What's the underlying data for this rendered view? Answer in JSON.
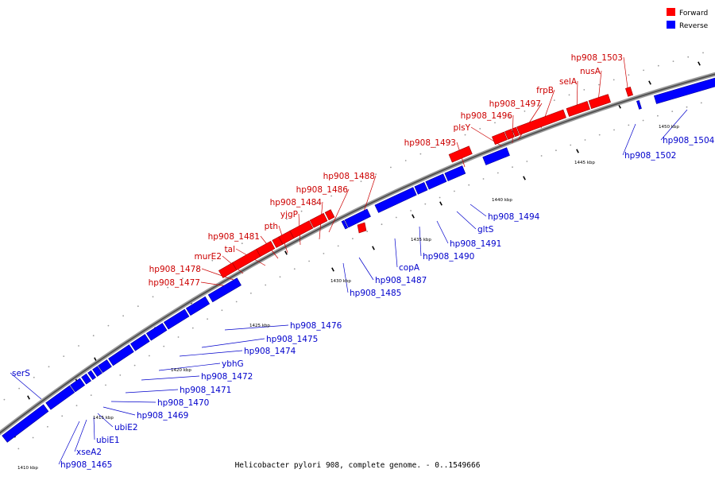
{
  "caption": "Helicobacter pylori 908, complete genome. - 0..1549666",
  "legend": {
    "forward_label": "Forward",
    "reverse_label": "Reverse",
    "forward_color": "#ff0000",
    "reverse_color": "#0000ff"
  },
  "tick_labels": [
    "1410 kbp",
    "1415 kbp",
    "1420 kbp",
    "1425 kbp",
    "1430 kbp",
    "1435 kbp",
    "1440 kbp",
    "1445 kbp",
    "1450 kbp"
  ],
  "forward_genes": [
    "hp908_1477",
    "hp908_1478",
    "murE2",
    "tal",
    "hp908_1481",
    "pth",
    "yjgP",
    "hp908_1484",
    "hp908_1486",
    "hp908_1488",
    "hp908_1493",
    "plsY",
    "hp908_1496",
    "hp908_1497",
    "frpB",
    "selA",
    "nusA",
    "hp908_1503"
  ],
  "reverse_genes": [
    "serS",
    "hp908_1465",
    "xseA2",
    "ubiE1",
    "ubiE2",
    "hp908_1469",
    "hp908_1470",
    "hp908_1471",
    "hp908_1472",
    "ybhG",
    "hp908_1474",
    "hp908_1475",
    "hp908_1476",
    "hp908_1485",
    "hp908_1487",
    "copA",
    "hp908_1490",
    "hp908_1491",
    "gltS",
    "hp908_1494",
    "hp908_1502",
    "hp908_1504"
  ]
}
